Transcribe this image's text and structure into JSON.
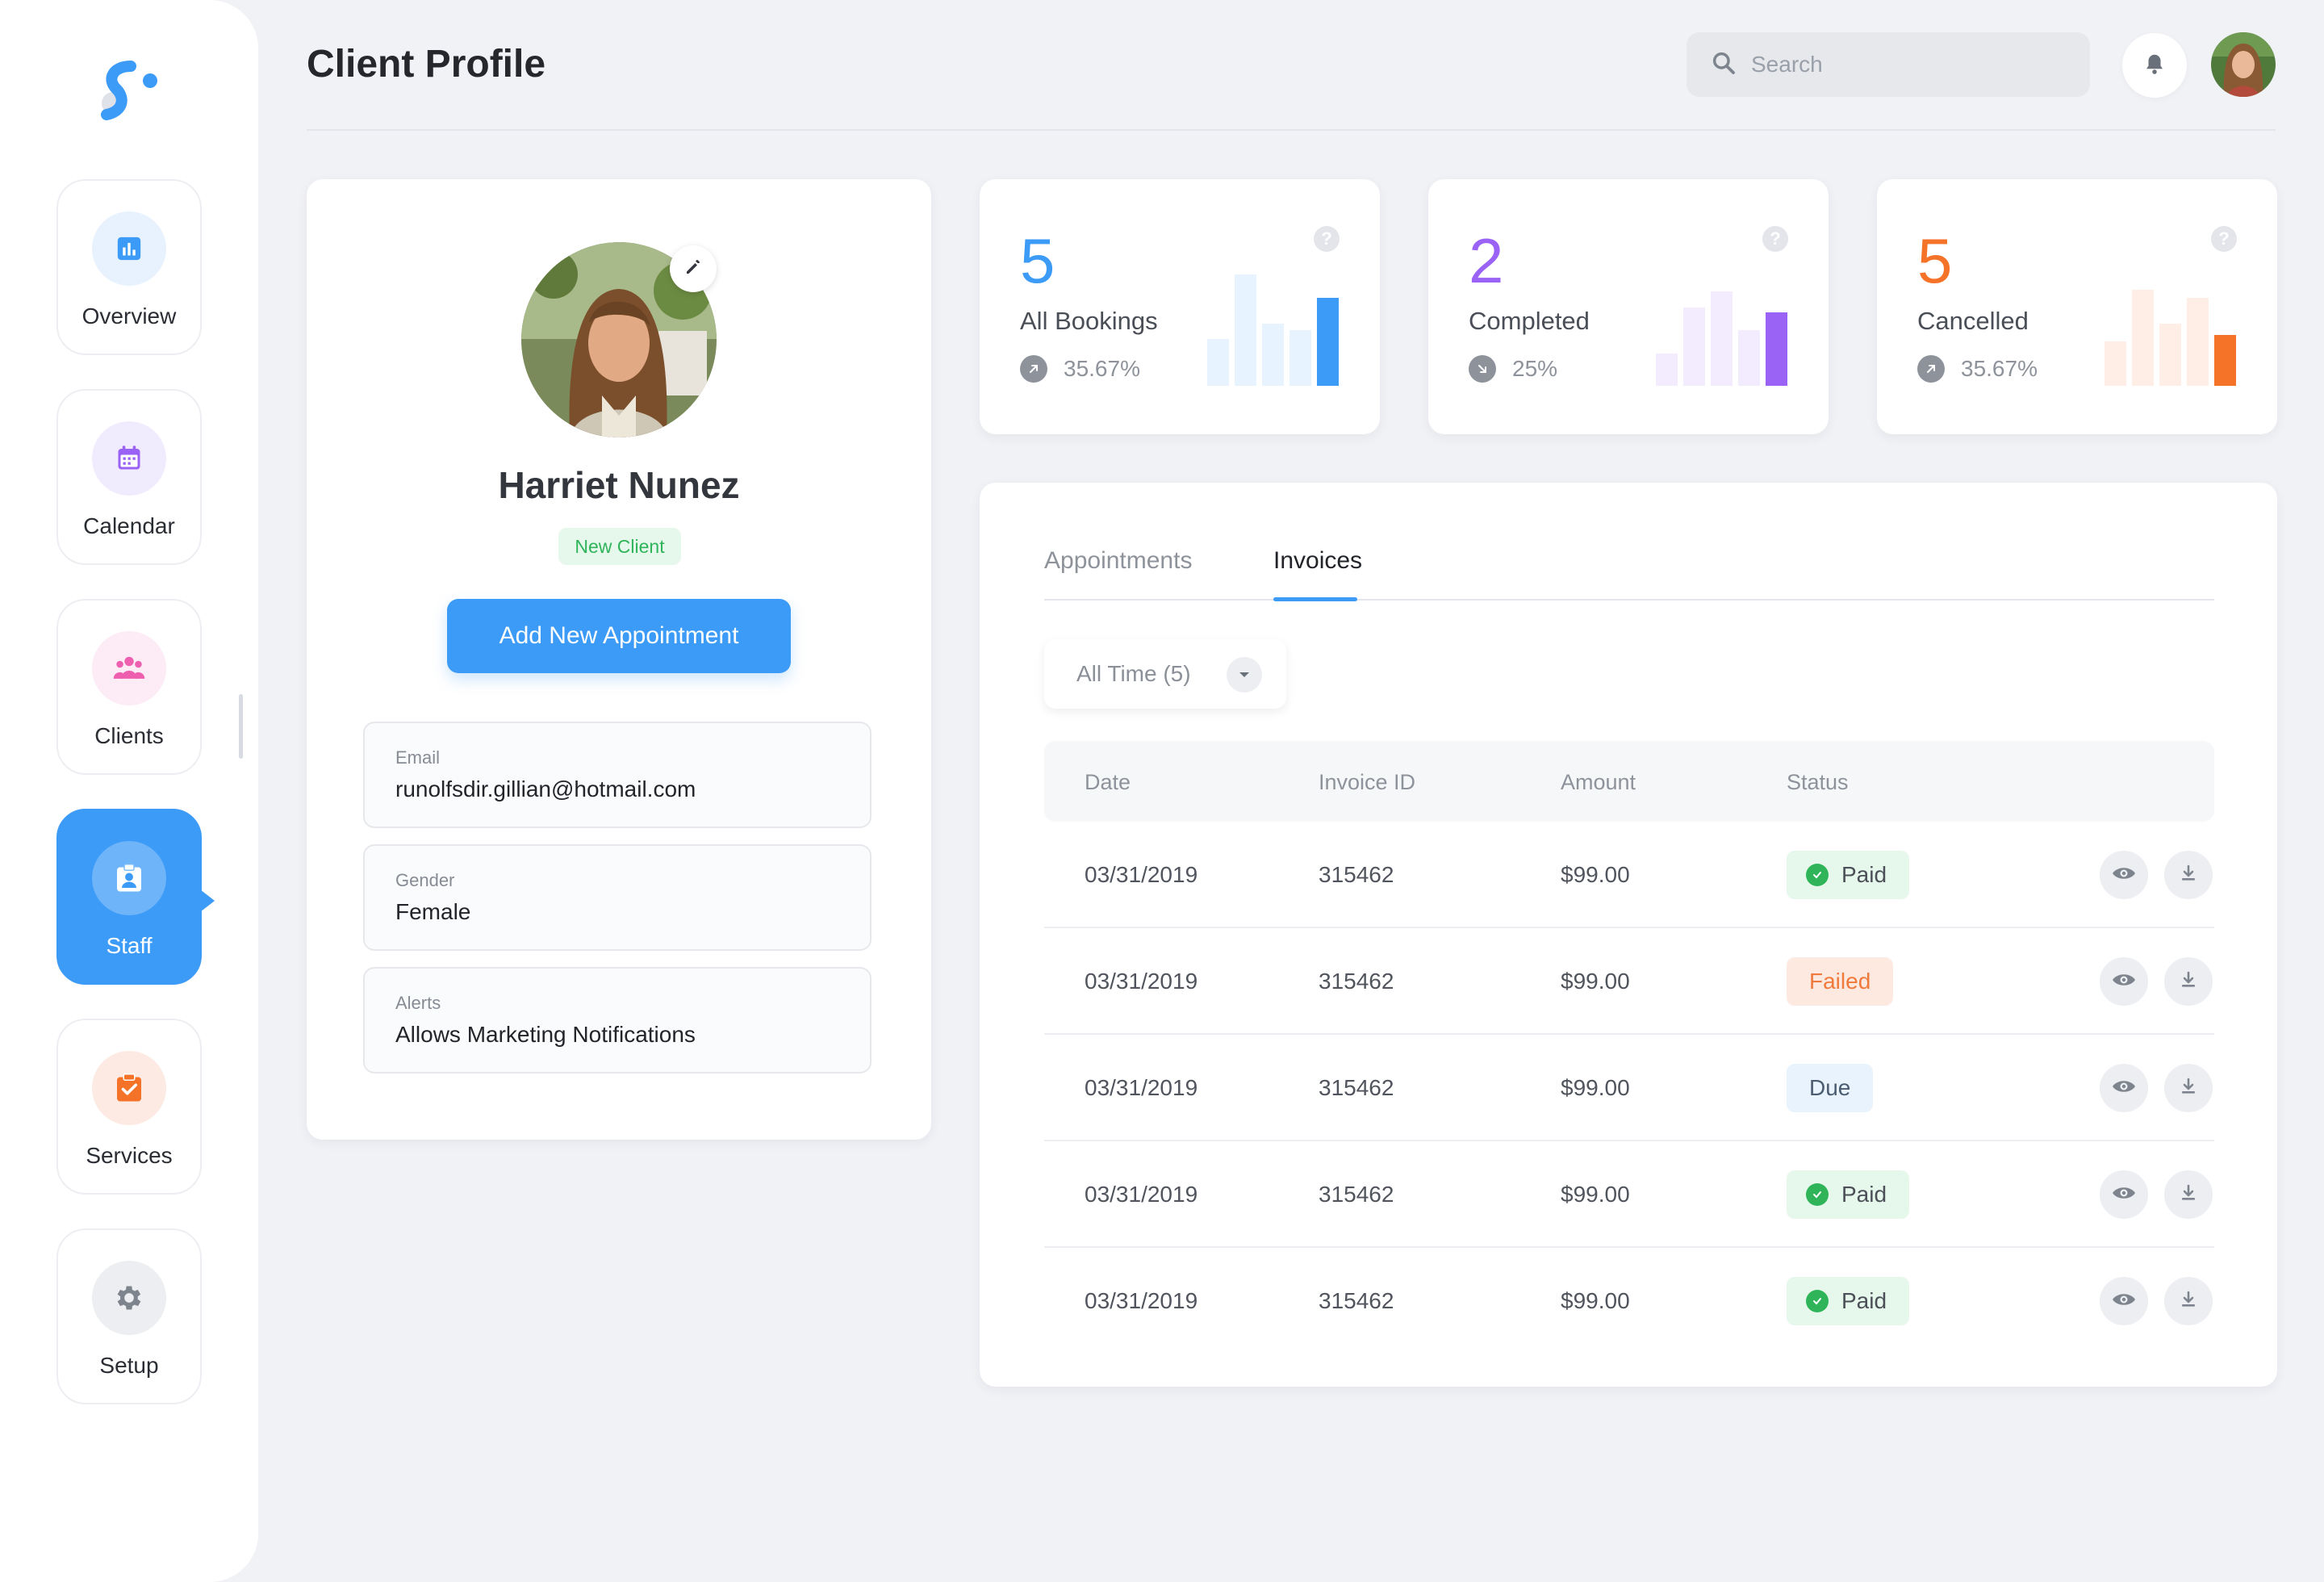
{
  "colors": {
    "accent": "#3c9bf7",
    "completed": "#9a62f5",
    "cancelled": "#f47328",
    "paid": "#2fb45a"
  },
  "sidebar": {
    "items": [
      {
        "label": "Overview",
        "icon": "bar-chart-icon"
      },
      {
        "label": "Calendar",
        "icon": "calendar-icon"
      },
      {
        "label": "Clients",
        "icon": "users-icon"
      },
      {
        "label": "Staff",
        "icon": "id-badge-icon"
      },
      {
        "label": "Services",
        "icon": "clipboard-check-icon"
      },
      {
        "label": "Setup",
        "icon": "gear-icon"
      }
    ],
    "active": "Staff"
  },
  "header": {
    "title": "Client Profile",
    "search_placeholder": "Search"
  },
  "profile": {
    "name": "Harriet Nunez",
    "badge": "New Client",
    "add_button": "Add New Appointment",
    "fields": [
      {
        "label": "Email",
        "value": "runolfsdir.gillian@hotmail.com"
      },
      {
        "label": "Gender",
        "value": "Female"
      },
      {
        "label": "Alerts",
        "value": "Allows Marketing Notifications"
      }
    ]
  },
  "stats": [
    {
      "value": "5",
      "label": "All Bookings",
      "change": "35.67%",
      "trend": "up",
      "bars": [
        0.42,
        1.0,
        0.56,
        0.5,
        0.79
      ]
    },
    {
      "value": "2",
      "label": "Completed",
      "change": "25%",
      "trend": "down",
      "bars": [
        0.29,
        0.7,
        0.85,
        0.5,
        0.66
      ]
    },
    {
      "value": "5",
      "label": "Cancelled",
      "change": "35.67%",
      "trend": "up",
      "bars": [
        0.4,
        0.86,
        0.56,
        0.79,
        0.46
      ]
    }
  ],
  "tabs": {
    "items": [
      "Appointments",
      "Invoices"
    ],
    "active": "Invoices"
  },
  "filter": {
    "label": "All Time (5)"
  },
  "table": {
    "columns": [
      "Date",
      "Invoice ID",
      "Amount",
      "Status"
    ],
    "rows": [
      {
        "date": "03/31/2019",
        "id": "315462",
        "amount": "$99.00",
        "status": "Paid"
      },
      {
        "date": "03/31/2019",
        "id": "315462",
        "amount": "$99.00",
        "status": "Failed"
      },
      {
        "date": "03/31/2019",
        "id": "315462",
        "amount": "$99.00",
        "status": "Due"
      },
      {
        "date": "03/31/2019",
        "id": "315462",
        "amount": "$99.00",
        "status": "Paid"
      },
      {
        "date": "03/31/2019",
        "id": "315462",
        "amount": "$99.00",
        "status": "Paid"
      }
    ]
  }
}
